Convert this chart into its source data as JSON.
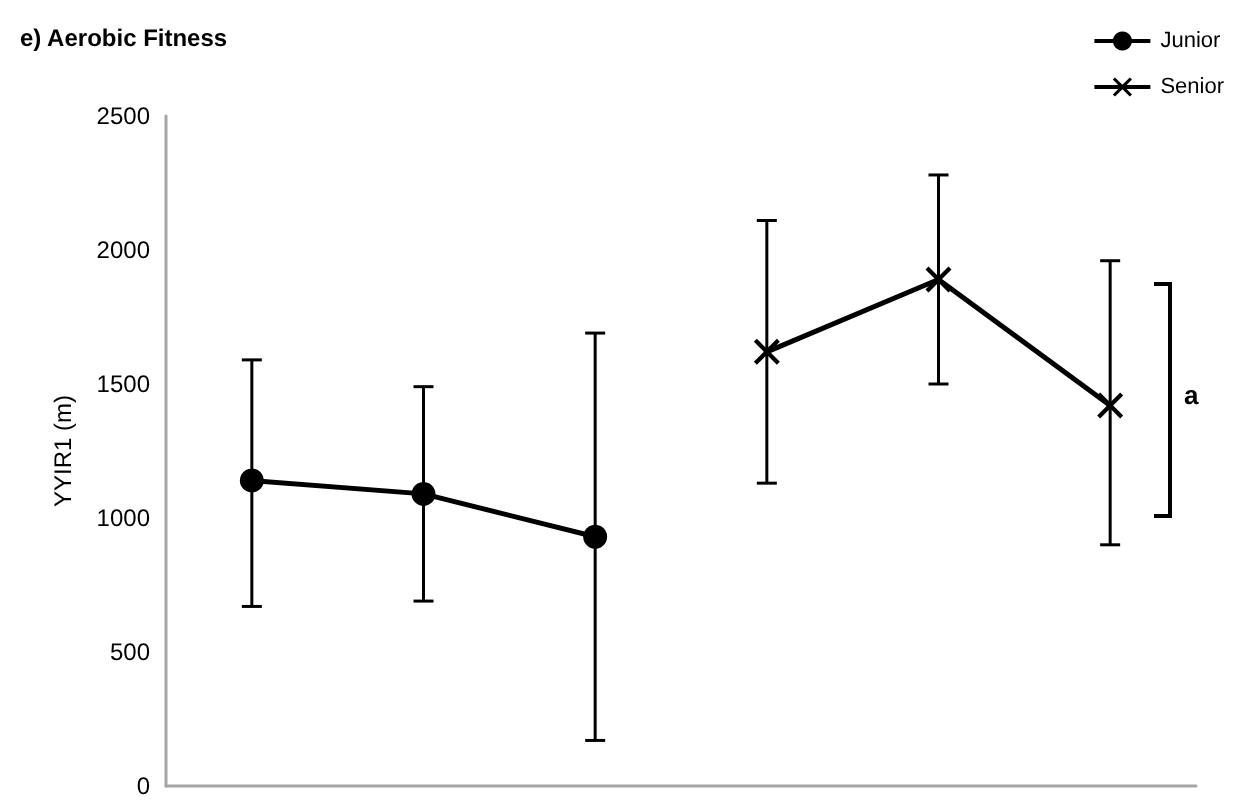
{
  "chart_data": {
    "type": "line",
    "title": "e) Aerobic Fitness",
    "ylabel": "YYIR1 (m)",
    "categories": [
      null,
      null,
      null,
      null,
      null,
      null
    ],
    "series": [
      {
        "name": "Junior",
        "color": "#000000",
        "marker": "circle",
        "values": [
          1140,
          1090,
          930,
          null,
          null,
          null
        ],
        "errors": [
          [
            670,
            1590
          ],
          [
            690,
            1490
          ],
          [
            170,
            1690
          ],
          null,
          null,
          null
        ]
      },
      {
        "name": "Senior",
        "color": "#000000",
        "marker": "cross",
        "values": [
          null,
          null,
          null,
          1620,
          1890,
          1420
        ],
        "errors": [
          null,
          null,
          null,
          [
            1130,
            2110
          ],
          [
            1500,
            2280
          ],
          [
            900,
            1960
          ]
        ]
      }
    ],
    "ylim": [
      0,
      2500
    ],
    "yticks": [
      0,
      500,
      1000,
      1500,
      2000,
      2500
    ],
    "grid": false,
    "legend": "top right",
    "annotations": [
      "a"
    ]
  }
}
